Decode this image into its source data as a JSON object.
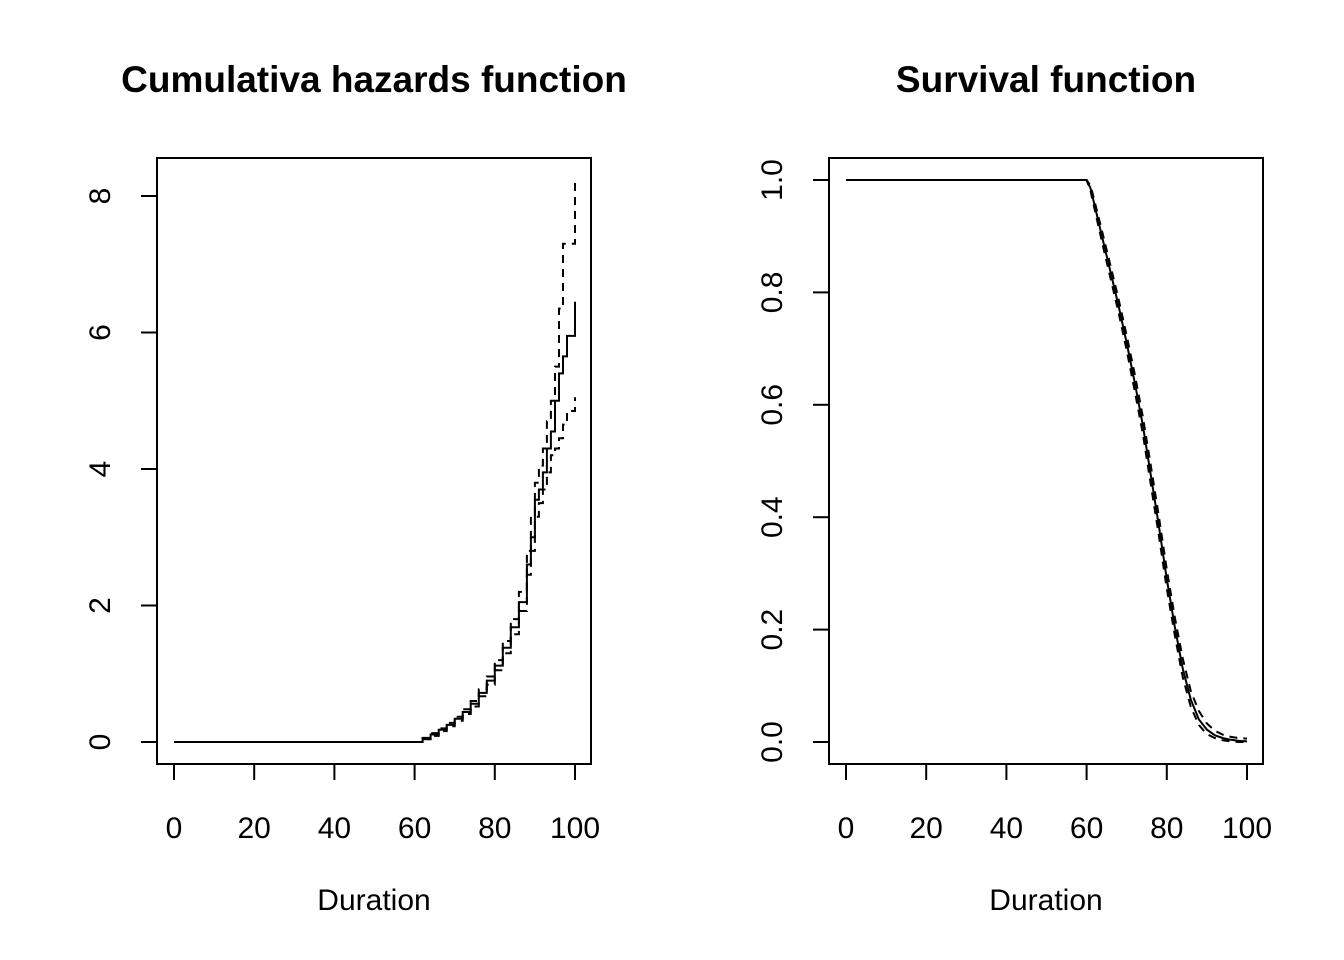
{
  "chart_data": [
    {
      "type": "line",
      "title": "Cumulativa hazards function",
      "xlabel": "Duration",
      "ylabel": "",
      "xlim": [
        0,
        100
      ],
      "ylim": [
        0,
        8.3
      ],
      "xticks": [
        "0",
        "20",
        "40",
        "60",
        "80",
        "100"
      ],
      "yticks": [
        "0",
        "2",
        "4",
        "6",
        "8"
      ],
      "step": true,
      "series": [
        {
          "style": "solid",
          "x": [
            0,
            60,
            62,
            64,
            66,
            68,
            70,
            72,
            74,
            76,
            78,
            80,
            82,
            84,
            86,
            88,
            89,
            90,
            91,
            92,
            93,
            94,
            95,
            96,
            97,
            98,
            99,
            100
          ],
          "y": [
            0,
            0,
            0.05,
            0.11,
            0.18,
            0.25,
            0.34,
            0.44,
            0.56,
            0.72,
            0.9,
            1.12,
            1.38,
            1.68,
            2.05,
            2.6,
            3.0,
            3.55,
            3.7,
            3.95,
            4.3,
            4.55,
            5.0,
            5.4,
            5.65,
            5.95,
            5.95,
            6.45
          ]
        },
        {
          "style": "dashed",
          "x": [
            0,
            60,
            62,
            64,
            66,
            68,
            70,
            72,
            74,
            76,
            78,
            80,
            82,
            84,
            86,
            88,
            89,
            90,
            91,
            92,
            93,
            94,
            95,
            96,
            97,
            98,
            99,
            100
          ],
          "y": [
            0,
            0,
            0.06,
            0.13,
            0.2,
            0.28,
            0.37,
            0.48,
            0.6,
            0.77,
            0.96,
            1.2,
            1.48,
            1.8,
            2.2,
            2.8,
            3.3,
            3.8,
            4.05,
            4.3,
            4.7,
            5.0,
            5.5,
            6.35,
            7.3,
            7.3,
            7.3,
            8.25
          ]
        },
        {
          "style": "dashed",
          "x": [
            0,
            60,
            62,
            64,
            66,
            68,
            70,
            72,
            74,
            76,
            78,
            80,
            82,
            84,
            86,
            88,
            89,
            90,
            91,
            92,
            93,
            94,
            95,
            96,
            97,
            98,
            99,
            100
          ],
          "y": [
            0,
            0,
            0.04,
            0.09,
            0.16,
            0.23,
            0.31,
            0.41,
            0.52,
            0.67,
            0.84,
            1.05,
            1.3,
            1.58,
            1.92,
            2.45,
            2.8,
            3.3,
            3.5,
            3.7,
            3.95,
            4.2,
            4.3,
            4.45,
            4.65,
            4.85,
            4.85,
            5.05
          ]
        }
      ]
    },
    {
      "type": "line",
      "title": "Survival function",
      "xlabel": "Duration",
      "ylabel": "",
      "xlim": [
        0,
        100
      ],
      "ylim": [
        0,
        1
      ],
      "xticks": [
        "0",
        "20",
        "40",
        "60",
        "80",
        "100"
      ],
      "yticks": [
        "0.0",
        "0.2",
        "0.4",
        "0.6",
        "0.8",
        "1.0"
      ],
      "step": false,
      "series": [
        {
          "style": "solid",
          "x": [
            0,
            60,
            61,
            62,
            64,
            66,
            68,
            70,
            72,
            74,
            76,
            78,
            80,
            82,
            84,
            86,
            88,
            90,
            92,
            94,
            96,
            98,
            100
          ],
          "y": [
            1.0,
            1.0,
            0.985,
            0.955,
            0.895,
            0.835,
            0.775,
            0.71,
            0.64,
            0.565,
            0.475,
            0.385,
            0.29,
            0.205,
            0.13,
            0.075,
            0.04,
            0.022,
            0.012,
            0.007,
            0.004,
            0.002,
            0.001
          ]
        },
        {
          "style": "dashed",
          "x": [
            0,
            60,
            61,
            62,
            64,
            66,
            68,
            70,
            72,
            74,
            76,
            78,
            80,
            82,
            84,
            86,
            88,
            90,
            92,
            94,
            96,
            98,
            100
          ],
          "y": [
            1.0,
            1.0,
            0.99,
            0.962,
            0.905,
            0.846,
            0.787,
            0.723,
            0.655,
            0.58,
            0.492,
            0.402,
            0.307,
            0.222,
            0.148,
            0.09,
            0.055,
            0.033,
            0.02,
            0.013,
            0.009,
            0.007,
            0.006
          ]
        },
        {
          "style": "dashed",
          "x": [
            0,
            60,
            61,
            62,
            64,
            66,
            68,
            70,
            72,
            74,
            76,
            78,
            80,
            82,
            84,
            86,
            88,
            90,
            92,
            94,
            96,
            98,
            100
          ],
          "y": [
            1.0,
            1.0,
            0.98,
            0.948,
            0.885,
            0.824,
            0.763,
            0.697,
            0.625,
            0.55,
            0.458,
            0.368,
            0.273,
            0.19,
            0.115,
            0.062,
            0.03,
            0.014,
            0.007,
            0.003,
            0.001,
            0.0,
            0.0
          ]
        }
      ]
    }
  ]
}
